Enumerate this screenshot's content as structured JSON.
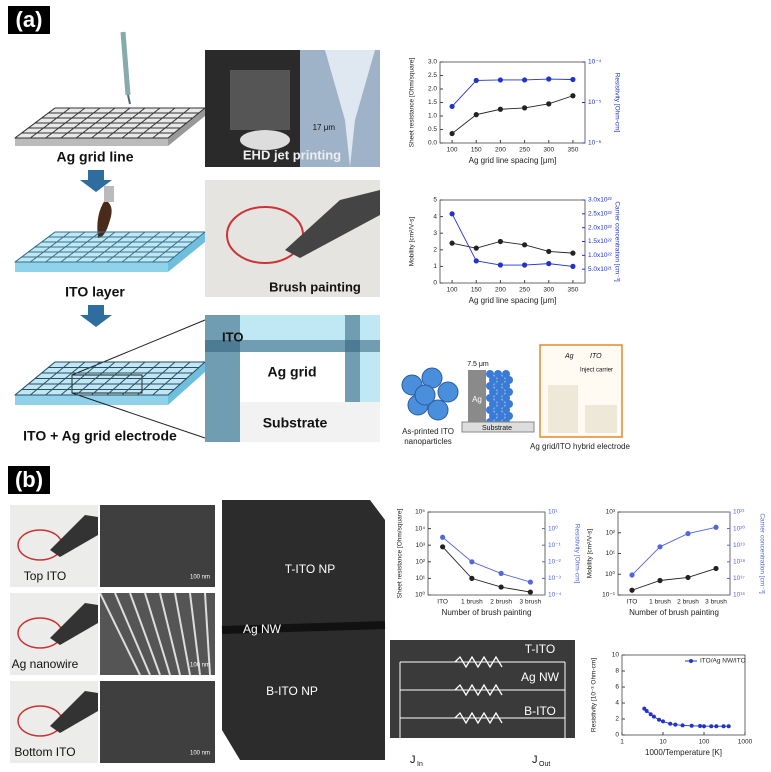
{
  "panel_a": {
    "label": "(a)",
    "steps": [
      "Ag grid line",
      "ITO layer",
      "ITO + Ag grid electrode"
    ],
    "photos": [
      "EHD jet printing",
      "Brush painting"
    ],
    "scale_label": "17 μm",
    "cross_section": {
      "top": "ITO",
      "middle": "Ag grid",
      "bottom": "Substrate"
    },
    "schematic": {
      "width": "7.5 μm",
      "ag": "Ag",
      "ito": "ITO",
      "inject": "Inject carrier",
      "substrate": "Substrate",
      "left_caption": [
        "As-printed ITO",
        "nanoparticles"
      ],
      "right_caption": "Ag grid/ITO hybrid electrode"
    }
  },
  "panel_b": {
    "label": "(b)",
    "photos": [
      "Top ITO",
      "Ag nanowire",
      "Bottom ITO"
    ],
    "scale_bars": [
      "100 nm",
      "100 nm",
      "100 nm"
    ],
    "tem": [
      "T-ITO NP",
      "Ag NW",
      "B-ITO NP"
    ],
    "circuit": {
      "layers": [
        "T-ITO",
        "Ag NW",
        "B-ITO"
      ],
      "symbol": "J",
      "in": "In",
      "out": "Out"
    }
  },
  "chart_data": [
    {
      "type": "line",
      "xlabel": "Ag grid line spacing [μm]",
      "ylabel": "Sheet resistance [Ohm/square]",
      "y2label": "Resistivity [Ohm-cm]",
      "x": [
        100,
        150,
        200,
        250,
        300,
        350
      ],
      "xlim": [
        75,
        375
      ],
      "xticks": [
        100,
        150,
        200,
        250,
        300,
        350
      ],
      "ylim": [
        0,
        3
      ],
      "yticks": [
        {
          "value": 0,
          "label": "0.0"
        },
        0.5,
        {
          "value": 1,
          "label": "1.0"
        },
        1.5,
        {
          "value": 2,
          "label": "2.0"
        },
        2.5,
        {
          "value": 3,
          "label": "3.0"
        }
      ],
      "y2lim": [
        1e-06,
        0.0001
      ],
      "y2log": true,
      "y2ticks": [
        {
          "value": 1e-06,
          "label": "10⁻⁶"
        },
        {
          "value": 1e-05,
          "label": "10⁻⁵"
        },
        {
          "value": 0.0001,
          "label": "10⁻⁴"
        }
      ],
      "series": [
        {
          "color": "#222222",
          "values": [
            0.35,
            1.05,
            1.25,
            1.3,
            1.45,
            1.75
          ]
        },
        {
          "color": "#2233cc",
          "axis": "y2",
          "values": [
            8e-06,
            3.5e-05,
            3.6e-05,
            3.6e-05,
            3.8e-05,
            3.7e-05
          ]
        }
      ]
    },
    {
      "type": "line",
      "xlabel": "Ag grid line spacing [μm]",
      "ylabel": "Mobility [cm²/V-s]",
      "y2label": "Carrier concentration [cm⁻³]",
      "x": [
        100,
        150,
        200,
        250,
        300,
        350
      ],
      "xlim": [
        75,
        375
      ],
      "xticks": [
        100,
        150,
        200,
        250,
        300,
        350
      ],
      "ylim": [
        0,
        5
      ],
      "yticks": [
        0,
        1,
        2,
        3,
        4,
        5
      ],
      "y2lim": [
        0,
        3e+22
      ],
      "y2ticks": [
        {
          "value": 5e+21,
          "label": "5.0x10²¹"
        },
        {
          "value": 1e+22,
          "label": "1.0x10²²"
        },
        {
          "value": 1.5e+22,
          "label": "1.5x10²²"
        },
        {
          "value": 2e+22,
          "label": "2.0x10²²"
        },
        {
          "value": 2.5e+22,
          "label": "2.5x10²²"
        },
        {
          "value": 3e+22,
          "label": "3.0x10²²"
        }
      ],
      "series": [
        {
          "color": "#222222",
          "values": [
            2.4,
            2.1,
            2.5,
            2.3,
            1.9,
            1.8
          ]
        },
        {
          "color": "#2233cc",
          "axis": "y2",
          "values": [
            2.5e+22,
            8e+21,
            6.5e+21,
            6.5e+21,
            7e+21,
            6e+21
          ]
        }
      ]
    },
    {
      "type": "line",
      "xlabel": "Number of brush painting",
      "ylabel": "Sheet resistance [Ohm/square]",
      "y2label": "Resistivity [Ohm-cm]",
      "categories": [
        "ITO",
        "1 brush",
        "2 brush",
        "3 brush"
      ],
      "ylim": [
        1,
        100000
      ],
      "ylog": true,
      "yticks": [
        {
          "value": 1,
          "label": "10⁰"
        },
        {
          "value": 10,
          "label": "10¹"
        },
        {
          "value": 100,
          "label": "10²"
        },
        {
          "value": 1000,
          "label": "10³"
        },
        {
          "value": 10000,
          "label": "10⁴"
        },
        {
          "value": 100000,
          "label": "10⁵"
        }
      ],
      "y2lim": [
        0.0001,
        10
      ],
      "y2log": true,
      "y2ticks": [
        {
          "value": 0.0001,
          "label": "10⁻⁴"
        },
        {
          "value": 0.001,
          "label": "10⁻³"
        },
        {
          "value": 0.01,
          "label": "10⁻²"
        },
        {
          "value": 0.1,
          "label": "10⁻¹"
        },
        {
          "value": 1,
          "label": "10⁰"
        },
        {
          "value": 10,
          "label": "10¹"
        }
      ],
      "series": [
        {
          "color": "#222222",
          "values": [
            800,
            10,
            3,
            1.5
          ]
        },
        {
          "color": "#5566dd",
          "axis": "y2",
          "values": [
            0.3,
            0.01,
            0.002,
            0.0006
          ]
        }
      ]
    },
    {
      "type": "line",
      "xlabel": "Number of brush painting",
      "ylabel": "Mobility [cm²/V-s]",
      "y2label": "Carrier concentration [cm⁻³]",
      "categories": [
        "ITO",
        "1 brush",
        "2 brush",
        "3 brush"
      ],
      "ylim": [
        0.1,
        1000
      ],
      "ylog": true,
      "yticks": [
        {
          "value": 0.1,
          "label": "10⁻¹"
        },
        {
          "value": 1,
          "label": "10⁰"
        },
        {
          "value": 10,
          "label": "10¹"
        },
        {
          "value": 100,
          "label": "10²"
        },
        {
          "value": 1000,
          "label": "10³"
        }
      ],
      "y2lim": [
        1e+16,
        1e+21
      ],
      "y2log": true,
      "y2ticks": [
        {
          "value": 1e+16,
          "label": "10¹⁶"
        },
        {
          "value": 1e+17,
          "label": "10¹⁷"
        },
        {
          "value": 1e+18,
          "label": "10¹⁸"
        },
        {
          "value": 1e+19,
          "label": "10¹⁹"
        },
        {
          "value": 1e+20,
          "label": "10²⁰"
        },
        {
          "value": 1e+21,
          "label": "10²¹"
        }
      ],
      "series": [
        {
          "color": "#222222",
          "values": [
            0.17,
            0.5,
            0.7,
            1.9
          ]
        },
        {
          "color": "#5566dd",
          "axis": "y2",
          "values": [
            1.6e+17,
            8e+18,
            5e+19,
            1.2e+20
          ]
        }
      ]
    },
    {
      "type": "line",
      "xlabel": "1000/Temperature [K]",
      "ylabel": "Resistivity [10⁻³ Ohm-cm]",
      "x": [
        3.5,
        4,
        5,
        6,
        8,
        10,
        15,
        20,
        30,
        50,
        80,
        100,
        150,
        200,
        300,
        400
      ],
      "xlim": [
        1,
        1000
      ],
      "xlog": true,
      "xticks": [
        1,
        10,
        100,
        1000
      ],
      "ylim": [
        0,
        10
      ],
      "yticks": [
        0,
        2,
        4,
        6,
        8,
        10
      ],
      "series": [
        {
          "name": "ITO/Ag NW/ITO",
          "color": "#2233cc",
          "values": [
            3.3,
            3.0,
            2.6,
            2.3,
            1.9,
            1.7,
            1.4,
            1.3,
            1.2,
            1.15,
            1.12,
            1.1,
            1.1,
            1.1,
            1.1,
            1.1
          ]
        }
      ]
    }
  ]
}
